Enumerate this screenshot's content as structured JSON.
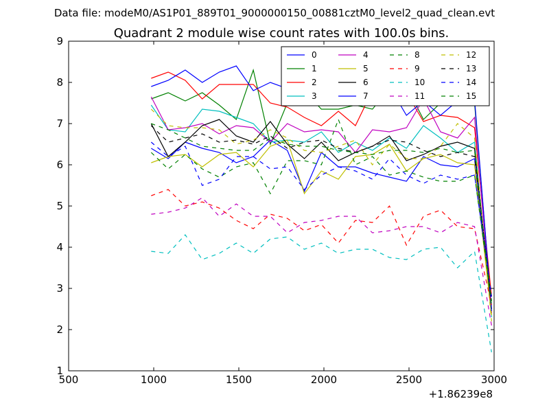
{
  "header": {
    "data_file": "Data file: modeM0/AS1P01_889T01_9000000150_00881cztM0_level2_quad_clean.evt"
  },
  "chart_data": {
    "type": "line",
    "title": "Quadrant 2 module wise count rates with 100.0s bins.",
    "xlabel": "",
    "ylabel": "",
    "x_offset_label": "+1.86239e8",
    "xlim": [
      500,
      3000
    ],
    "ylim": [
      1,
      9
    ],
    "xticks": [
      500,
      1000,
      1500,
      2000,
      2500,
      3000
    ],
    "yticks": [
      1,
      2,
      3,
      4,
      5,
      6,
      7,
      8,
      9
    ],
    "grid": false,
    "legend_position": "top-right",
    "legend_columns": 4,
    "x": [
      985,
      1085,
      1185,
      1285,
      1385,
      1485,
      1585,
      1685,
      1785,
      1885,
      1985,
      2085,
      2185,
      2285,
      2385,
      2485,
      2585,
      2685,
      2785,
      2885,
      2985
    ],
    "series": [
      {
        "name": "0",
        "color": "#0000ff",
        "dash": "solid",
        "values": [
          6.4,
          6.15,
          6.55,
          6.4,
          6.3,
          6.05,
          6.2,
          6.6,
          6.35,
          5.35,
          6.3,
          5.95,
          5.95,
          5.8,
          5.7,
          5.6,
          6.2,
          6.0,
          5.95,
          6.15,
          2.4
        ]
      },
      {
        "name": "1",
        "color": "#008000",
        "dash": "solid",
        "values": [
          7.6,
          7.75,
          7.55,
          7.75,
          7.45,
          7.1,
          8.3,
          6.5,
          7.5,
          7.8,
          7.35,
          7.35,
          7.45,
          7.35,
          7.85,
          7.9,
          7.1,
          7.5,
          7.55,
          7.5,
          2.5
        ]
      },
      {
        "name": "2",
        "color": "#ff0000",
        "dash": "solid",
        "values": [
          8.1,
          8.25,
          8.05,
          7.6,
          7.95,
          7.95,
          7.95,
          7.5,
          7.4,
          7.15,
          6.95,
          7.3,
          6.95,
          7.8,
          7.55,
          7.75,
          7.05,
          7.2,
          7.15,
          6.9,
          2.8
        ]
      },
      {
        "name": "3",
        "color": "#00bfbf",
        "dash": "solid",
        "values": [
          7.45,
          6.85,
          6.8,
          7.35,
          7.3,
          7.15,
          7.0,
          6.55,
          6.6,
          6.55,
          6.8,
          6.3,
          6.55,
          6.35,
          6.65,
          6.4,
          6.95,
          6.65,
          6.3,
          6.55,
          2.3
        ]
      },
      {
        "name": "4",
        "color": "#bf00bf",
        "dash": "solid",
        "values": [
          7.65,
          6.85,
          6.9,
          7.0,
          6.75,
          6.95,
          6.9,
          6.55,
          7.0,
          6.8,
          6.85,
          6.8,
          6.3,
          6.85,
          6.8,
          6.9,
          7.6,
          6.8,
          6.65,
          7.15,
          2.4
        ]
      },
      {
        "name": "5",
        "color": "#bfbf00",
        "dash": "solid",
        "values": [
          6.05,
          6.2,
          6.25,
          5.95,
          6.25,
          6.3,
          5.95,
          6.45,
          6.6,
          5.3,
          5.85,
          5.65,
          6.2,
          6.25,
          6.5,
          5.85,
          6.15,
          6.25,
          6.05,
          6.0,
          2.35
        ]
      },
      {
        "name": "6",
        "color": "#000000",
        "dash": "solid",
        "values": [
          7.0,
          6.2,
          6.55,
          6.95,
          7.1,
          6.7,
          6.55,
          7.05,
          6.5,
          6.15,
          6.55,
          6.1,
          6.3,
          6.45,
          6.7,
          6.1,
          6.25,
          6.45,
          6.55,
          6.4,
          2.5
        ]
      },
      {
        "name": "7",
        "color": "#0000ff",
        "dash": "solid",
        "values": [
          7.9,
          8.05,
          8.3,
          8.0,
          8.25,
          8.4,
          7.8,
          8.0,
          7.85,
          7.75,
          7.6,
          7.7,
          7.45,
          7.65,
          7.9,
          7.2,
          7.55,
          7.2,
          7.55,
          7.6,
          2.45
        ]
      },
      {
        "name": "8",
        "color": "#008000",
        "dash": "dashed",
        "values": [
          6.3,
          5.9,
          6.25,
          5.9,
          5.7,
          5.95,
          6.05,
          5.3,
          6.1,
          6.1,
          6.0,
          7.1,
          6.0,
          6.2,
          5.75,
          5.85,
          5.7,
          5.6,
          5.6,
          5.75,
          2.7
        ]
      },
      {
        "name": "9",
        "color": "#ff0000",
        "dash": "dashed",
        "values": [
          5.25,
          5.4,
          5.0,
          5.1,
          4.95,
          4.65,
          4.45,
          4.8,
          4.7,
          4.4,
          4.55,
          4.1,
          4.65,
          4.6,
          5.0,
          4.05,
          4.75,
          4.9,
          4.5,
          4.45,
          2.6
        ]
      },
      {
        "name": "10",
        "color": "#00bfbf",
        "dash": "dashed",
        "values": [
          3.9,
          3.85,
          4.3,
          3.7,
          3.85,
          4.1,
          3.85,
          4.2,
          4.25,
          3.95,
          4.1,
          3.85,
          3.95,
          3.95,
          3.75,
          3.7,
          3.95,
          4.0,
          3.5,
          3.9,
          1.45
        ]
      },
      {
        "name": "11",
        "color": "#bf00bf",
        "dash": "dashed",
        "values": [
          4.8,
          4.85,
          4.95,
          5.2,
          4.75,
          5.05,
          4.75,
          4.75,
          4.35,
          4.6,
          4.65,
          4.75,
          4.75,
          4.35,
          4.4,
          4.5,
          4.5,
          4.35,
          4.6,
          4.5,
          2.1
        ]
      },
      {
        "name": "12",
        "color": "#bfbf00",
        "dash": "dashed",
        "values": [
          7.35,
          6.95,
          6.9,
          6.9,
          6.85,
          6.5,
          6.6,
          6.85,
          6.65,
          6.35,
          6.3,
          6.45,
          6.6,
          6.0,
          6.5,
          6.15,
          6.15,
          6.45,
          7.0,
          6.65,
          2.2
        ]
      },
      {
        "name": "13",
        "color": "#000000",
        "dash": "dashed",
        "values": [
          6.95,
          6.55,
          6.65,
          6.75,
          6.55,
          6.6,
          6.5,
          6.7,
          6.4,
          6.55,
          6.6,
          6.4,
          6.3,
          6.45,
          6.6,
          6.55,
          6.35,
          6.2,
          6.3,
          6.2,
          2.7
        ]
      },
      {
        "name": "14",
        "color": "#0000ff",
        "dash": "dashed",
        "values": [
          6.55,
          6.2,
          6.45,
          5.5,
          5.65,
          6.2,
          6.2,
          5.9,
          5.95,
          5.4,
          5.75,
          5.95,
          5.85,
          5.65,
          6.15,
          5.75,
          5.55,
          5.75,
          5.65,
          5.75,
          2.8
        ]
      },
      {
        "name": "15",
        "color": "#008000",
        "dash": "dashed",
        "values": [
          7.0,
          6.85,
          6.65,
          6.45,
          6.4,
          6.35,
          6.35,
          6.65,
          6.5,
          6.45,
          6.45,
          6.35,
          6.3,
          6.25,
          6.35,
          6.35,
          6.3,
          6.4,
          6.3,
          6.35,
          2.6
        ]
      }
    ]
  }
}
